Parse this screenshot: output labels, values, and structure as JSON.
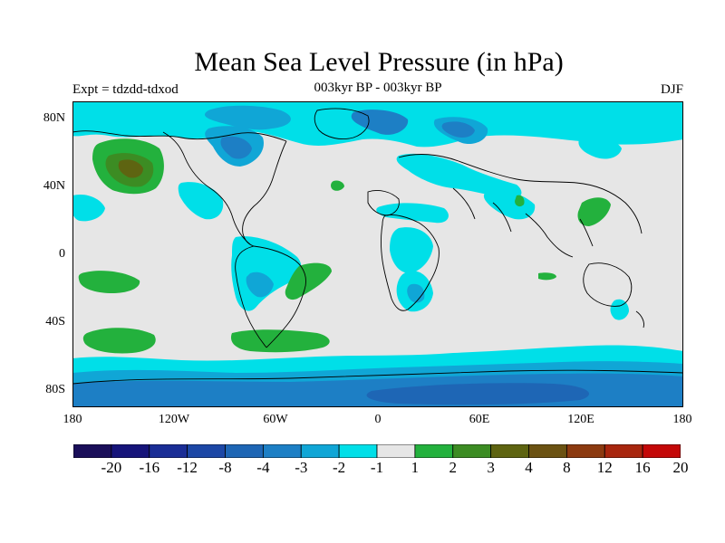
{
  "title": "Mean Sea Level Pressure (in hPa)",
  "experiment_label": "Expt = tdzdd-tdxod",
  "period_label": "003kyr BP - 003kyr BP",
  "season_label": "DJF",
  "y_axis_labels": [
    "80N",
    "40N",
    "0",
    "40S",
    "80S"
  ],
  "x_axis_labels": [
    "180",
    "120W",
    "60W",
    "0",
    "60E",
    "120E",
    "180"
  ],
  "colorbar": {
    "colors": [
      "#1b0f5a",
      "#16147a",
      "#1a2d96",
      "#1c47a6",
      "#1e66b5",
      "#1d7fc5",
      "#10a6d6",
      "#00dfe8",
      "#e6e6e6",
      "#23b13d",
      "#3c8c23",
      "#5e6411",
      "#6b5212",
      "#8c3a10",
      "#a8260e",
      "#c40808"
    ],
    "labels": [
      "-20",
      "-16",
      "-12",
      "-8",
      "-4",
      "-3",
      "-2",
      "-1",
      "1",
      "2",
      "3",
      "4",
      "8",
      "12",
      "16",
      "20"
    ]
  },
  "colors": {
    "neutral": "#e6e6e6",
    "cyan": "#00dfe8",
    "blue_light": "#10a6d6",
    "blue_mid": "#1d7fc5",
    "blue_dark": "#1e66b5",
    "green": "#23b13d",
    "green_dark": "#3c8c23",
    "olive": "#5e6411"
  }
}
